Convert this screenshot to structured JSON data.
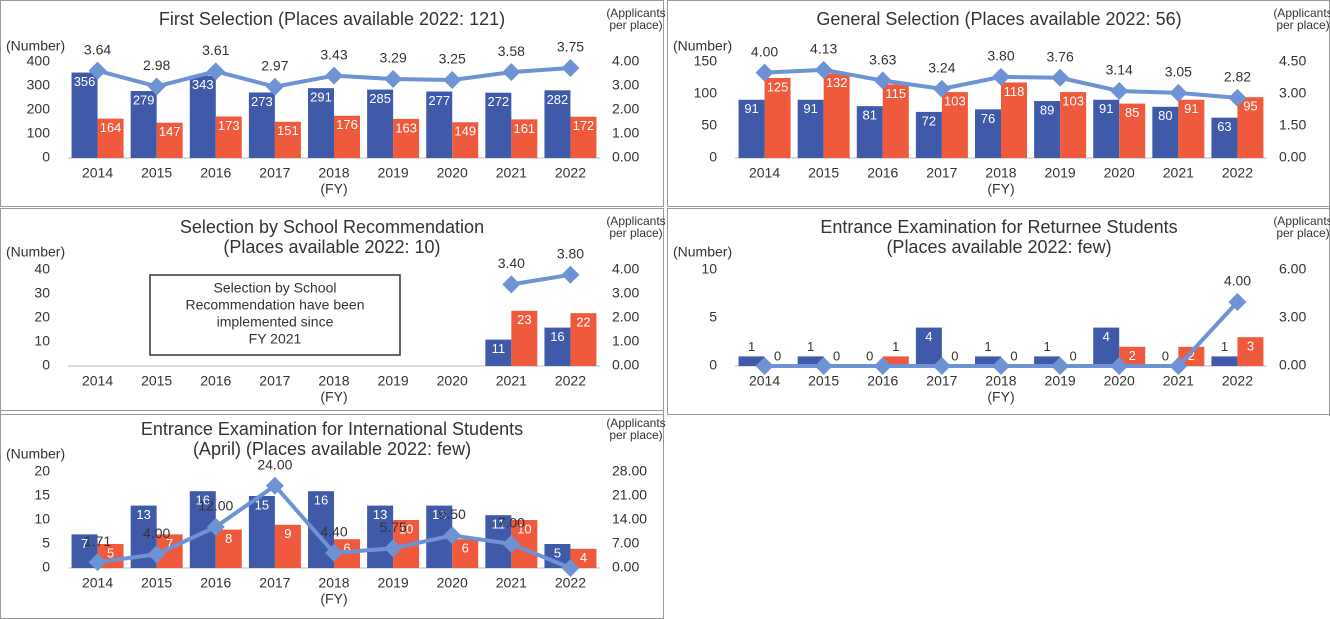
{
  "chart_data": [
    {
      "type": "combo",
      "title": [
        "First Selection (Places available 2022: 121)"
      ],
      "ylabel": "(Number)",
      "y2label": [
        "(Applicants",
        "per place)"
      ],
      "xlabel": "(FY)",
      "categories": [
        "2014",
        "2015",
        "2016",
        "2017",
        "2018",
        "2019",
        "2020",
        "2021",
        "2022"
      ],
      "ylim": [
        0,
        400
      ],
      "yticks": [
        0,
        100,
        200,
        300,
        400
      ],
      "y2lim": [
        0,
        4
      ],
      "y2ticks": [
        {
          "value": 0,
          "label": "0.00"
        },
        {
          "value": 1,
          "label": "1.00"
        },
        {
          "value": 2,
          "label": "2.00"
        },
        {
          "value": 3,
          "label": "3.00"
        },
        {
          "value": 4,
          "label": "4.00"
        }
      ],
      "series": [
        {
          "type": "bar",
          "color": "#3f5aa8",
          "values": [
            356,
            279,
            343,
            273,
            291,
            285,
            277,
            272,
            282
          ]
        },
        {
          "type": "bar",
          "color": "#ee5a3b",
          "values": [
            164,
            147,
            173,
            151,
            176,
            163,
            149,
            161,
            172
          ]
        },
        {
          "type": "line",
          "axis": "y2",
          "color": "#6d93d5",
          "values": [
            3.64,
            2.98,
            3.61,
            2.97,
            3.43,
            3.29,
            3.25,
            3.58,
            3.75
          ],
          "value_labels": [
            "3.64",
            "2.98",
            "3.61",
            "2.97",
            "3.43",
            "3.29",
            "3.25",
            "3.58",
            "3.75"
          ]
        }
      ]
    },
    {
      "type": "combo",
      "title": [
        "General Selection (Places available 2022: 56)"
      ],
      "ylabel": "(Number)",
      "y2label": [
        "(Applicants",
        "per place)"
      ],
      "xlabel": "(FY)",
      "categories": [
        "2014",
        "2015",
        "2016",
        "2017",
        "2018",
        "2019",
        "2020",
        "2021",
        "2022"
      ],
      "ylim": [
        0,
        150
      ],
      "yticks": [
        0,
        50,
        100,
        150
      ],
      "y2lim": [
        0,
        4.5
      ],
      "y2ticks": [
        {
          "value": 0,
          "label": "0.00"
        },
        {
          "value": 1.5,
          "label": "1.50"
        },
        {
          "value": 3,
          "label": "3.00"
        },
        {
          "value": 4.5,
          "label": "4.50"
        }
      ],
      "series": [
        {
          "type": "bar",
          "color": "#3f5aa8",
          "values": [
            91,
            91,
            81,
            72,
            76,
            89,
            91,
            80,
            63
          ]
        },
        {
          "type": "bar",
          "color": "#ee5a3b",
          "values": [
            125,
            132,
            115,
            103,
            118,
            103,
            85,
            91,
            95
          ]
        },
        {
          "type": "line",
          "axis": "y2",
          "color": "#6d93d5",
          "values": [
            4.0,
            4.13,
            3.63,
            3.24,
            3.8,
            3.76,
            3.14,
            3.05,
            2.82
          ],
          "value_labels": [
            "4.00",
            "4.13",
            "3.63",
            "3.24",
            "3.80",
            "3.76",
            "3.14",
            "3.05",
            "2.82"
          ]
        }
      ]
    },
    {
      "type": "combo",
      "title": [
        "Selection by School Recommendation",
        "(Places available 2022: 10)"
      ],
      "ylabel": "(Number)",
      "y2label": [
        "(Applicants",
        "per place)"
      ],
      "xlabel": "(FY)",
      "annotation": [
        "Selection by School",
        "Recommendation have been",
        "implemented since",
        "FY 2021"
      ],
      "categories": [
        "2014",
        "2015",
        "2016",
        "2017",
        "2018",
        "2019",
        "2020",
        "2021",
        "2022"
      ],
      "ylim": [
        0,
        40
      ],
      "yticks": [
        0,
        10,
        20,
        30,
        40
      ],
      "y2lim": [
        0,
        4
      ],
      "y2ticks": [
        {
          "value": 0,
          "label": "0.00"
        },
        {
          "value": 1,
          "label": "1.00"
        },
        {
          "value": 2,
          "label": "2.00"
        },
        {
          "value": 3,
          "label": "3.00"
        },
        {
          "value": 4,
          "label": "4.00"
        }
      ],
      "series": [
        {
          "type": "bar",
          "color": "#3f5aa8",
          "values": [
            null,
            null,
            null,
            null,
            null,
            null,
            null,
            11,
            16
          ]
        },
        {
          "type": "bar",
          "color": "#ee5a3b",
          "values": [
            null,
            null,
            null,
            null,
            null,
            null,
            null,
            23,
            22
          ]
        },
        {
          "type": "line",
          "axis": "y2",
          "color": "#6d93d5",
          "values": [
            null,
            null,
            null,
            null,
            null,
            null,
            null,
            3.4,
            3.8
          ],
          "value_labels": [
            null,
            null,
            null,
            null,
            null,
            null,
            null,
            "3.40",
            "3.80"
          ]
        }
      ]
    },
    {
      "type": "combo",
      "title": [
        "Entrance Examination for Returnee Students",
        "(Places available 2022: few)"
      ],
      "ylabel": "(Number)",
      "y2label": [
        "(Applicants",
        "per place)"
      ],
      "xlabel": "(FY)",
      "categories": [
        "2014",
        "2015",
        "2016",
        "2017",
        "2018",
        "2019",
        "2020",
        "2021",
        "2022"
      ],
      "ylim": [
        0,
        10
      ],
      "yticks": [
        0,
        5,
        10
      ],
      "y2lim": [
        0,
        6
      ],
      "y2ticks": [
        {
          "value": 0,
          "label": "0.00"
        },
        {
          "value": 3,
          "label": "3.00"
        },
        {
          "value": 6,
          "label": "6.00"
        }
      ],
      "series": [
        {
          "type": "bar",
          "color": "#3f5aa8",
          "values": [
            1,
            1,
            0,
            4,
            1,
            1,
            4,
            0,
            1
          ]
        },
        {
          "type": "bar",
          "color": "#ee5a3b",
          "values": [
            0,
            0,
            1,
            0,
            0,
            0,
            2,
            2,
            3
          ]
        },
        {
          "type": "line",
          "axis": "y2",
          "color": "#6d93d5",
          "values": [
            0,
            0,
            0,
            0,
            0,
            0,
            0,
            0,
            4.0
          ],
          "value_labels": [
            null,
            null,
            null,
            null,
            null,
            null,
            null,
            null,
            "4.00"
          ]
        }
      ]
    },
    {
      "type": "combo",
      "title": [
        "Entrance Examination for International Students",
        "(April) (Places available 2022: few)"
      ],
      "ylabel": "(Number)",
      "y2label": [
        "(Applicants",
        "per place)"
      ],
      "xlabel": "(FY)",
      "categories": [
        "2014",
        "2015",
        "2016",
        "2017",
        "2018",
        "2019",
        "2020",
        "2021",
        "2022"
      ],
      "ylim": [
        0,
        20
      ],
      "yticks": [
        0,
        5,
        10,
        15,
        20
      ],
      "y2lim": [
        0,
        28
      ],
      "y2ticks": [
        {
          "value": 0,
          "label": "0.00"
        },
        {
          "value": 7,
          "label": "7.00"
        },
        {
          "value": 14,
          "label": "14.00"
        },
        {
          "value": 21,
          "label": "21.00"
        },
        {
          "value": 28,
          "label": "28.00"
        }
      ],
      "series": [
        {
          "type": "bar",
          "color": "#3f5aa8",
          "values": [
            7,
            13,
            16,
            15,
            16,
            13,
            13,
            11,
            5
          ]
        },
        {
          "type": "bar",
          "color": "#ee5a3b",
          "values": [
            5,
            7,
            8,
            9,
            6,
            10,
            6,
            10,
            4
          ]
        },
        {
          "type": "line",
          "axis": "y2",
          "color": "#6d93d5",
          "values": [
            1.71,
            4.0,
            12.0,
            24.0,
            4.4,
            5.75,
            9.5,
            7.0,
            0
          ],
          "value_labels": [
            "1.71",
            "4.00",
            "12.00",
            "24.00",
            "4.40",
            "5.75",
            "9.50",
            "7.00",
            null
          ]
        }
      ]
    }
  ]
}
